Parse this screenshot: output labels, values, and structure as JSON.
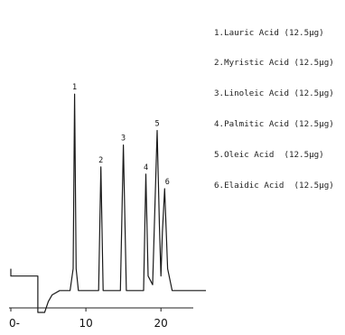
{
  "chart_data": {
    "type": "line",
    "title": "",
    "xlabel": "",
    "ylabel": "",
    "xlim": [
      0,
      26
    ],
    "ylim": [
      -3.5,
      30
    ],
    "x_ticks": [
      0,
      10,
      20
    ],
    "x_tick_labels": [
      "0-",
      "10",
      "20"
    ],
    "grid": false,
    "legend": {
      "placement": "top-right",
      "entries": [
        "1.Lauric Acid (12.5μg)",
        "2.Myristic Acid (12.5μg)",
        "3.Linoleic Acid (12.5μg)",
        "4.Palmitic Acid (12.5μg)",
        "5.Oleic Acid  (12.5μg)",
        "6.Elaidic Acid  (12.5μg)"
      ]
    },
    "peaks": [
      {
        "label": "1",
        "x": 8.5,
        "height": 27.0
      },
      {
        "label": "2",
        "x": 12.0,
        "height": 17.0
      },
      {
        "label": "3",
        "x": 15.0,
        "height": 20.0
      },
      {
        "label": "4",
        "x": 18.0,
        "height": 16.0
      },
      {
        "label": "5",
        "x": 19.5,
        "height": 22.0
      },
      {
        "label": "6",
        "x": 20.5,
        "height": 14.0
      }
    ],
    "trace": [
      [
        0.0,
        3.0
      ],
      [
        0.0,
        2.0
      ],
      [
        2.0,
        2.0
      ],
      [
        3.6,
        2.0
      ],
      [
        3.6,
        -3.0
      ],
      [
        4.5,
        -3.0
      ],
      [
        5.0,
        -1.5
      ],
      [
        5.5,
        -0.6
      ],
      [
        6.5,
        0.0
      ],
      [
        7.9,
        0.0
      ],
      [
        8.3,
        3.0
      ],
      [
        8.5,
        27.0
      ],
      [
        8.7,
        3.0
      ],
      [
        9.0,
        0.0
      ],
      [
        11.7,
        0.0
      ],
      [
        12.0,
        17.0
      ],
      [
        12.3,
        0.0
      ],
      [
        14.6,
        0.0
      ],
      [
        15.0,
        20.0
      ],
      [
        15.4,
        0.0
      ],
      [
        17.7,
        0.0
      ],
      [
        18.0,
        16.0
      ],
      [
        18.3,
        2.0
      ],
      [
        18.9,
        0.8
      ],
      [
        19.1,
        8.0
      ],
      [
        19.5,
        22.0
      ],
      [
        19.8,
        9.0
      ],
      [
        20.0,
        2.0
      ],
      [
        20.2,
        8.0
      ],
      [
        20.5,
        14.0
      ],
      [
        20.9,
        3.0
      ],
      [
        21.5,
        0.0
      ],
      [
        26.0,
        0.0
      ]
    ]
  }
}
